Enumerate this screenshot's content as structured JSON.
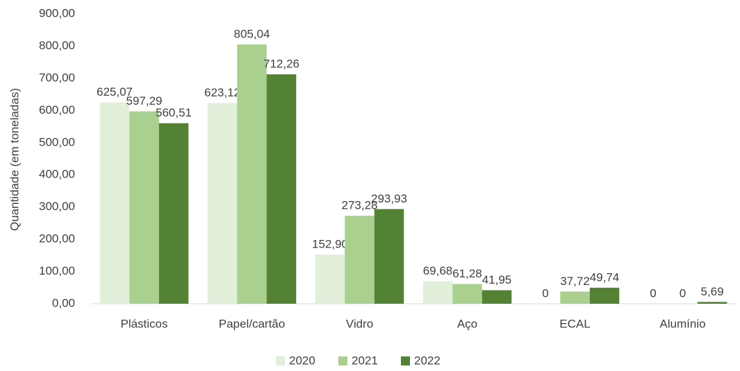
{
  "chart_data": {
    "type": "bar",
    "y_label": "Quantidade (em toneladas)",
    "categories": [
      "Plásticos",
      "Papel/cartão",
      "Vidro",
      "Aço",
      "ECAL",
      "Alumínio"
    ],
    "series": [
      {
        "name": "2020",
        "color": "#e2efda",
        "values": [
          625.07,
          623.12,
          152.9,
          69.68,
          0,
          0
        ],
        "value_labels": [
          "625,07",
          "623,12",
          "152,90",
          "69,68",
          "0",
          "0"
        ]
      },
      {
        "name": "2021",
        "color": "#a9d08e",
        "values": [
          597.29,
          805.04,
          273.28,
          61.28,
          37.72,
          0
        ],
        "value_labels": [
          "597,29",
          "805,04",
          "273,28",
          "61,28",
          "37,72",
          "0"
        ]
      },
      {
        "name": "2022",
        "color": "#548235",
        "values": [
          560.51,
          712.26,
          293.93,
          41.95,
          49.74,
          5.69
        ],
        "value_labels": [
          "560,51",
          "712,26",
          "293,93",
          "41,95",
          "49,74",
          "5,69"
        ]
      }
    ],
    "ylim": [
      0,
      900
    ],
    "yticks": [
      {
        "value": 0,
        "label": "0,00"
      },
      {
        "value": 100,
        "label": "100,00"
      },
      {
        "value": 200,
        "label": "200,00"
      },
      {
        "value": 300,
        "label": "300,00"
      },
      {
        "value": 400,
        "label": "400,00"
      },
      {
        "value": 500,
        "label": "500,00"
      },
      {
        "value": 600,
        "label": "600,00"
      },
      {
        "value": 700,
        "label": "700,00"
      },
      {
        "value": 800,
        "label": "800,00"
      },
      {
        "value": 900,
        "label": "900,00"
      }
    ],
    "grid": false,
    "legend": "bottom"
  }
}
